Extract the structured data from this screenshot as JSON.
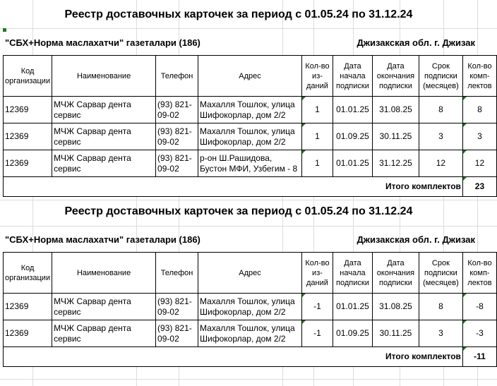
{
  "headers": {
    "code": "Код организации",
    "name": "Наименование",
    "phone": "Телефон",
    "address": "Адрес",
    "qty": "Кол-во из-даний",
    "start": "Дата начала подписки",
    "end": "Дата окончания подписки",
    "term": "Срок подписки (месяцев)",
    "sets": "Кол-во комп-лектов"
  },
  "total_label": "Итого комплектов",
  "blocks": [
    {
      "title": "Реестр доставочных карточек за период с 01.05.24 по 31.12.24",
      "newspaper": "\"СБХ+Норма маслахатчи\" газеталари (186)",
      "region": "Джизакская обл. г. Джизак",
      "rows": [
        {
          "code": "12369",
          "name": "МЧЖ Сарвар дента сервис",
          "phone": "(93) 821-09-02",
          "address": "Махалля Тошлок, улица Шифокорлар, дом 2/2",
          "qty": "1",
          "start": "01.01.25",
          "end": "31.08.25",
          "term": "8",
          "sets": "8"
        },
        {
          "code": "12369",
          "name": "МЧЖ Сарвар дента сервис",
          "phone": "(93) 821-09-02",
          "address": "Махалля Тошлок, улица Шифокорлар, дом 2/2",
          "qty": "1",
          "start": "01.09.25",
          "end": "30.11.25",
          "term": "3",
          "sets": "3"
        },
        {
          "code": "12369",
          "name": "МЧЖ Сарвар дента сервис",
          "phone": "(93) 821-09-02",
          "address": "р-он Ш.Рашидова, Бустон МФИ, Узбегим - 8",
          "qty": "1",
          "start": "01.01.25",
          "end": "31.12.25",
          "term": "12",
          "sets": "12"
        }
      ],
      "total": "23"
    },
    {
      "title": "Реестр доставочных карточек за период с 01.05.24 по 31.12.24",
      "newspaper": "\"СБХ+Норма маслахатчи\" газеталари (186)",
      "region": "Джизакская обл. г. Джизак",
      "rows": [
        {
          "code": "12369",
          "name": "МЧЖ Сарвар дента сервис",
          "phone": "(93) 821-09-02",
          "address": "Махалля Тошлок, улица Шифокорлар, дом 2/2",
          "qty": "-1",
          "start": "01.01.25",
          "end": "31.08.25",
          "term": "8",
          "sets": "-8"
        },
        {
          "code": "12369",
          "name": "МЧЖ Сарвар дента сервис",
          "phone": "(93) 821-09-02",
          "address": "Махалля Тошлок, улица Шифокорлар, дом 2/2",
          "qty": "-1",
          "start": "01.09.25",
          "end": "30.11.25",
          "term": "3",
          "sets": "-3"
        }
      ],
      "total": "-11"
    }
  ]
}
